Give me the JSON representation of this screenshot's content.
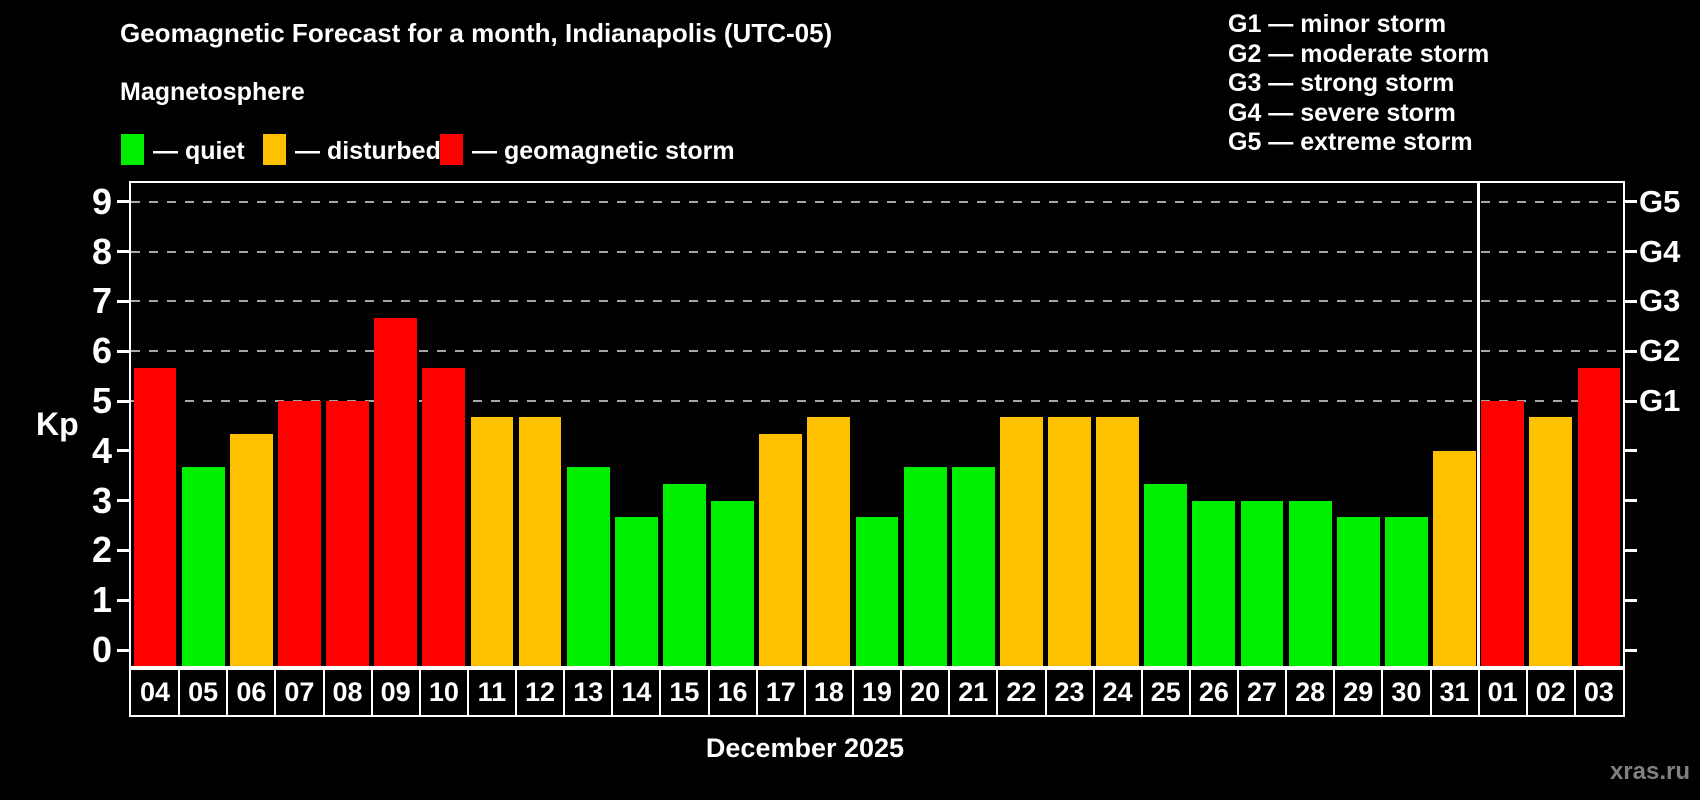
{
  "header": {
    "title": "Geomagnetic Forecast for a month, Indianapolis (UTC-05)",
    "subtitle": "Magnetosphere"
  },
  "legend": {
    "items": [
      {
        "key": "quiet",
        "label": "— quiet"
      },
      {
        "key": "disturbed",
        "label": "— disturbed"
      },
      {
        "key": "storm",
        "label": "— geomagnetic storm"
      }
    ]
  },
  "storm_scale_legend": {
    "items": [
      "G1 — minor storm",
      "G2 — moderate storm",
      "G3 — strong storm",
      "G4 — severe storm",
      "G5 — extreme storm"
    ]
  },
  "colors": {
    "quiet": "#00ee00",
    "disturbed": "#ffc000",
    "storm": "#ff0000",
    "grid": "#a6a6a6",
    "axis": "#ffffff",
    "watermark": "#808080",
    "background": "#000000"
  },
  "axes": {
    "y_label": "Kp",
    "y_ticks": [
      0,
      1,
      2,
      3,
      4,
      5,
      6,
      7,
      8,
      9
    ],
    "right_tick_labels": [
      {
        "value": 5,
        "label": "G1"
      },
      {
        "value": 6,
        "label": "G2"
      },
      {
        "value": 7,
        "label": "G3"
      },
      {
        "value": 8,
        "label": "G4"
      },
      {
        "value": 9,
        "label": "G5"
      }
    ],
    "x_label": "December 2025"
  },
  "watermark": "xras.ru",
  "chart_data": {
    "type": "bar",
    "title": "Geomagnetic Forecast for a month, Indianapolis (UTC-05)",
    "xlabel": "December 2025",
    "ylabel": "Kp",
    "ylim": [
      0,
      9.4
    ],
    "grid_levels": [
      5,
      6,
      7,
      8,
      9
    ],
    "legend_position": "top-left",
    "categories": [
      "04",
      "05",
      "06",
      "07",
      "08",
      "09",
      "10",
      "11",
      "12",
      "13",
      "14",
      "15",
      "16",
      "17",
      "18",
      "19",
      "20",
      "21",
      "22",
      "23",
      "24",
      "25",
      "26",
      "27",
      "28",
      "29",
      "30",
      "31",
      "01",
      "02",
      "03"
    ],
    "values": [
      5.67,
      3.67,
      4.33,
      5.0,
      5.0,
      6.67,
      5.67,
      4.67,
      4.67,
      3.67,
      2.67,
      3.33,
      3.0,
      4.33,
      4.67,
      2.67,
      3.67,
      3.67,
      4.67,
      4.67,
      4.67,
      3.33,
      3.0,
      3.0,
      3.0,
      2.67,
      2.67,
      4.0,
      5.0,
      4.67,
      5.67
    ],
    "statuses": [
      "storm",
      "quiet",
      "disturbed",
      "storm",
      "storm",
      "storm",
      "storm",
      "disturbed",
      "disturbed",
      "quiet",
      "quiet",
      "quiet",
      "quiet",
      "disturbed",
      "disturbed",
      "quiet",
      "quiet",
      "quiet",
      "disturbed",
      "disturbed",
      "disturbed",
      "quiet",
      "quiet",
      "quiet",
      "quiet",
      "quiet",
      "quiet",
      "disturbed",
      "storm",
      "disturbed",
      "storm"
    ],
    "month_separator_after_category": "31"
  }
}
